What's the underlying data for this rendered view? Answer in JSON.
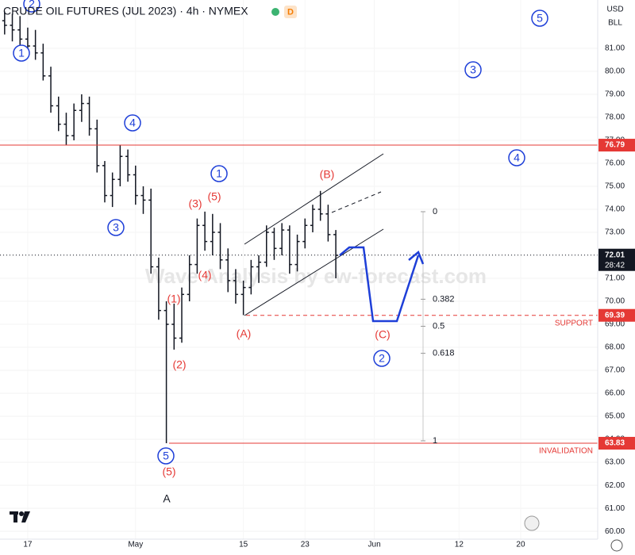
{
  "chart_data": {
    "type": "ohlc",
    "title": "CRUDE OIL FUTURES (JUL 2023) · 4h · NYMEX",
    "badge": "D",
    "currency": "USD",
    "unit": "BLL",
    "watermark": "Wave Analysis by ew-forecast.com",
    "bar_color": "#131722",
    "bars": {
      "x": [
        -3,
        -2,
        -1,
        0,
        1,
        2,
        3,
        4,
        5,
        6,
        7,
        8,
        9,
        10,
        11,
        12,
        13,
        14,
        15,
        16,
        17,
        18,
        19,
        20,
        21,
        22,
        23,
        24,
        25,
        26,
        27,
        28,
        29,
        30,
        31,
        32,
        33,
        34,
        35,
        36,
        37,
        38,
        39,
        40
      ],
      "open": [
        82.2,
        82.0,
        81.8,
        81.4,
        81.1,
        80.8,
        79.8,
        78.5,
        77.7,
        77.2,
        78.3,
        78.6,
        77.5,
        75.9,
        74.6,
        75.3,
        76.3,
        75.5,
        74.6,
        74.4,
        71.5,
        69.6,
        69.0,
        68.4,
        70.3,
        71.6,
        73.3,
        72.6,
        73.0,
        71.8,
        70.9,
        70.3,
        70.6,
        71.5,
        71.7,
        73.0,
        72.3,
        73.1,
        71.6,
        72.6,
        73.3,
        74.0,
        73.8,
        72.9
      ],
      "high": [
        82.6,
        82.5,
        82.4,
        81.9,
        81.8,
        81.2,
        80.2,
        78.9,
        78.2,
        78.6,
        79.0,
        78.9,
        77.9,
        76.1,
        75.6,
        76.8,
        76.6,
        75.9,
        75.0,
        74.9,
        71.9,
        70.0,
        69.9,
        70.6,
        72.0,
        73.6,
        73.9,
        73.8,
        73.4,
        72.3,
        71.4,
        70.9,
        71.8,
        72.0,
        73.3,
        73.2,
        73.4,
        73.3,
        72.9,
        73.6,
        74.2,
        74.8,
        74.2,
        73.1
      ],
      "low": [
        81.6,
        81.3,
        81.0,
        80.8,
        80.5,
        79.6,
        78.2,
        77.4,
        76.8,
        77.0,
        77.8,
        77.2,
        75.6,
        74.3,
        74.1,
        75.0,
        75.2,
        74.2,
        73.8,
        71.2,
        69.2,
        63.83,
        67.9,
        68.2,
        70.0,
        71.2,
        72.2,
        72.0,
        71.4,
        70.4,
        69.9,
        69.4,
        70.3,
        70.8,
        71.5,
        71.8,
        72.0,
        71.2,
        71.3,
        72.3,
        73.0,
        73.5,
        72.6,
        71.0
      ],
      "close": [
        82.0,
        81.8,
        81.4,
        81.1,
        80.8,
        79.8,
        78.5,
        77.7,
        77.2,
        78.3,
        78.6,
        77.5,
        75.9,
        74.6,
        75.3,
        76.3,
        75.5,
        74.6,
        74.4,
        71.5,
        69.6,
        69.0,
        68.4,
        70.3,
        71.6,
        73.3,
        72.6,
        73.0,
        71.8,
        70.9,
        70.3,
        70.6,
        71.5,
        71.7,
        73.0,
        72.3,
        73.1,
        71.6,
        72.6,
        73.3,
        74.0,
        73.8,
        72.9,
        72.0
      ]
    },
    "xlim": [
      -3.6,
      74
    ],
    "xticks": [
      {
        "value": 0,
        "label": "17"
      },
      {
        "value": 14,
        "label": "May"
      },
      {
        "value": 28,
        "label": "15"
      },
      {
        "value": 36,
        "label": "23"
      },
      {
        "value": 45,
        "label": "Jun"
      },
      {
        "value": 56,
        "label": "12"
      },
      {
        "value": 64,
        "label": "20"
      }
    ],
    "ylim": [
      59.66,
      83.1
    ],
    "yticks": [
      {
        "value": 60,
        "label": "60.00"
      },
      {
        "value": 61,
        "label": "61.00"
      },
      {
        "value": 62,
        "label": "62.00"
      },
      {
        "value": 63,
        "label": "63.00"
      },
      {
        "value": 64,
        "label": "64.00"
      },
      {
        "value": 65,
        "label": "65.00"
      },
      {
        "value": 66,
        "label": "66.00"
      },
      {
        "value": 67,
        "label": "67.00"
      },
      {
        "value": 68,
        "label": "68.00"
      },
      {
        "value": 69,
        "label": "69.00"
      },
      {
        "value": 70,
        "label": "70.00"
      },
      {
        "value": 71,
        "label": "71.00"
      },
      {
        "value": 72,
        "label": "72.00"
      },
      {
        "value": 73,
        "label": "73.00"
      },
      {
        "value": 74,
        "label": "74.00"
      },
      {
        "value": 75,
        "label": "75.00"
      },
      {
        "value": 76,
        "label": "76.00"
      },
      {
        "value": 77,
        "label": "77.00"
      },
      {
        "value": 78,
        "label": "78.00"
      },
      {
        "value": 79,
        "label": "79.00"
      },
      {
        "value": 80,
        "label": "80.00"
      },
      {
        "value": 81,
        "label": "81.00"
      }
    ],
    "levels": [
      {
        "value": 76.79,
        "color": "#e53935",
        "style": "solid"
      },
      {
        "value": 72.01,
        "color": "#131722",
        "style": "dotted",
        "countdown": "28:42"
      },
      {
        "value": 69.39,
        "color": "#e53935",
        "style": "dashed",
        "note": "SUPPORT"
      },
      {
        "value": 63.83,
        "color": "#e53935",
        "style": "solid",
        "note": "INVALIDATION"
      }
    ],
    "fib_levels": [
      0,
      0.382,
      0.5,
      0.618,
      1
    ],
    "wave_labels": [
      {
        "text": "2",
        "style": "circle"
      },
      {
        "text": "1",
        "style": "circle"
      },
      {
        "text": "4",
        "style": "circle"
      },
      {
        "text": "3",
        "style": "circle"
      },
      {
        "text": "1",
        "style": "circle"
      },
      {
        "text": "5",
        "style": "circle"
      },
      {
        "text": "2",
        "style": "circle"
      },
      {
        "text": "5",
        "style": "circle"
      },
      {
        "text": "3",
        "style": "circle"
      },
      {
        "text": "4",
        "style": "circle"
      },
      {
        "text": "(1)",
        "style": "red"
      },
      {
        "text": "(2)",
        "style": "red"
      },
      {
        "text": "(3)",
        "style": "red"
      },
      {
        "text": "(5)",
        "style": "red"
      },
      {
        "text": "(4)",
        "style": "red"
      },
      {
        "text": "(A)",
        "style": "red"
      },
      {
        "text": "(B)",
        "style": "red"
      },
      {
        "text": "(C)",
        "style": "red"
      },
      {
        "text": "(5)",
        "style": "red"
      },
      {
        "text": "A",
        "style": "black"
      }
    ]
  }
}
